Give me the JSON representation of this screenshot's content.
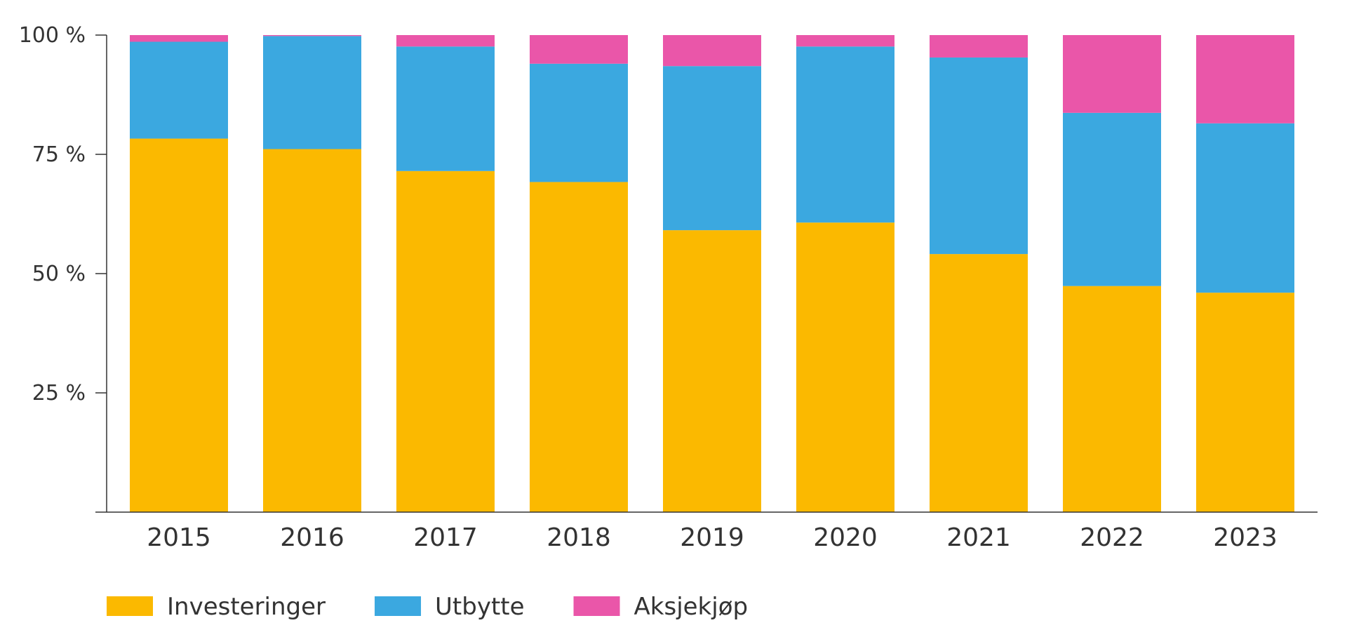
{
  "chart_data": {
    "type": "bar",
    "stacked": true,
    "title": "",
    "xlabel": "",
    "ylabel": "",
    "categories": [
      "2015",
      "2016",
      "2017",
      "2018",
      "2019",
      "2020",
      "2021",
      "2022",
      "2023"
    ],
    "series": [
      {
        "name": "Investeringer",
        "color": "#fbb900",
        "values": [
          78.3,
          76.1,
          71.5,
          69.2,
          59.1,
          60.7,
          54.1,
          47.4,
          46.0
        ]
      },
      {
        "name": "Utbytte",
        "color": "#3ba8e0",
        "values": [
          20.3,
          23.7,
          26.1,
          24.8,
          34.4,
          36.9,
          41.2,
          36.3,
          35.5
        ]
      },
      {
        "name": "Aksjekjøp",
        "color": "#ea56a9",
        "values": [
          1.4,
          0.2,
          2.4,
          6.0,
          6.5,
          2.4,
          4.7,
          16.3,
          18.5
        ]
      }
    ],
    "ylim": [
      0,
      100
    ],
    "yticks": [
      25,
      50,
      75,
      100
    ],
    "ytick_labels": [
      "25 %",
      "50 %",
      "75 %",
      "100 %"
    ],
    "grid": false,
    "legend_position": "bottom-left"
  }
}
